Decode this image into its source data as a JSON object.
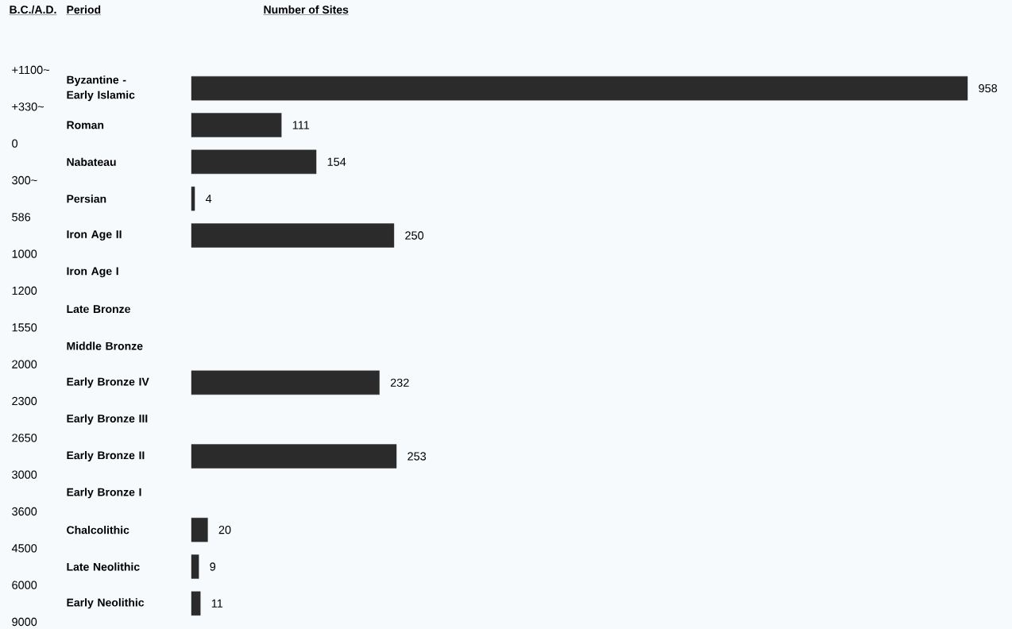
{
  "chart_data": {
    "type": "bar",
    "orientation": "horizontal",
    "title": "Number of Sites",
    "categories": [
      "Byzantine - Early Islamic",
      "Roman",
      "Nabateau",
      "Persian",
      "Iron Age II",
      "Iron Age I",
      "Late Bronze",
      "Middle Bronze",
      "Early Bronze IV",
      "Early Bronze III",
      "Early Bronze II",
      "Early Bronze I",
      "Chalcolithic",
      "Late Neolithic",
      "Early Neolithic"
    ],
    "values": [
      958,
      111,
      154,
      4,
      250,
      null,
      null,
      null,
      232,
      null,
      253,
      null,
      20,
      9,
      11
    ],
    "color": "#2b2b2b",
    "data_labels": true,
    "annotations": [
      "B.C./A.D.",
      "Period",
      "+1100~",
      "+330~",
      "0",
      "300~",
      "586",
      "1000",
      "1200",
      "1550",
      "2000",
      "2300",
      "2650",
      "3000",
      "3600",
      "4500",
      "6000",
      "9000"
    ]
  }
}
